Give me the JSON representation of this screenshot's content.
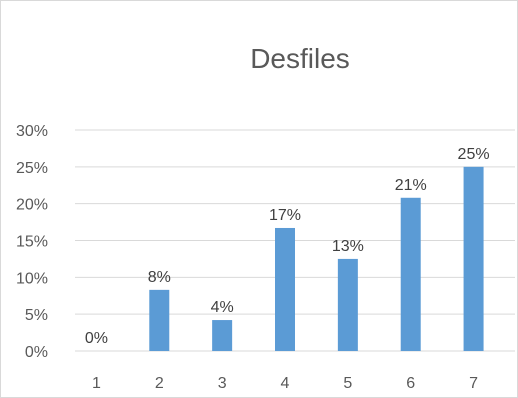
{
  "chart_data": {
    "type": "bar",
    "title": "Desfiles",
    "categories": [
      "1",
      "2",
      "3",
      "4",
      "5",
      "6",
      "7"
    ],
    "values": [
      0,
      8.3,
      4.2,
      16.7,
      12.5,
      20.8,
      25
    ],
    "data_labels": [
      "0%",
      "8%",
      "4%",
      "17%",
      "13%",
      "21%",
      "25%"
    ],
    "ylim": [
      0,
      30
    ],
    "yticks": [
      0,
      5,
      10,
      15,
      20,
      25,
      30
    ],
    "ytick_labels": [
      "0%",
      "5%",
      "10%",
      "15%",
      "20%",
      "25%",
      "30%"
    ],
    "xlabel": "",
    "ylabel": "",
    "grid": true,
    "legend": "none",
    "colors": {
      "bar": "#5b9bd5",
      "grid": "#d9d9d9",
      "text": "#595959"
    }
  }
}
